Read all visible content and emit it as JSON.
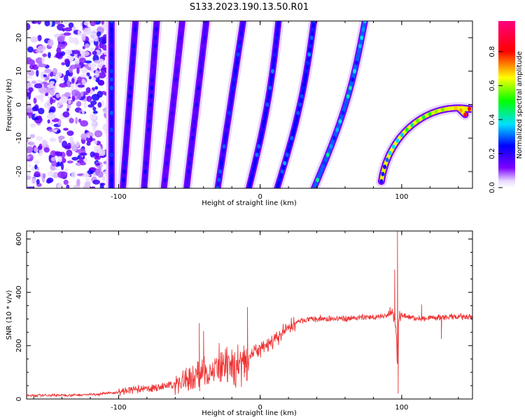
{
  "title": "S133.2023.190.13.50.R01",
  "chart_data": [
    {
      "type": "heatmap",
      "xlabel": "Height of straight line (km)",
      "ylabel": "Frequency (Hz)",
      "xlim": [
        -165,
        150
      ],
      "ylim": [
        -25,
        25
      ],
      "xticks": [
        -100,
        0,
        100
      ],
      "yticks": [
        -20,
        -10,
        0,
        10,
        20
      ],
      "colorbar": {
        "label": "Normalized spectral amplitude",
        "range": [
          0,
          0.98
        ],
        "ticks": [
          0.0,
          0.2,
          0.4,
          0.6,
          0.8
        ],
        "colormap": [
          "#ffffff",
          "#7b00ff",
          "#0000ff",
          "#00e0ff",
          "#00ff00",
          "#ffff00",
          "#ff0000",
          "#ff0080"
        ]
      },
      "ridges": [
        {
          "x_at_top": -105,
          "x_at_bottom": -105,
          "amplitude": 0.28
        },
        {
          "x_at_top": -88,
          "x_at_bottom": -97,
          "amplitude": 0.24
        },
        {
          "x_at_top": -73,
          "x_at_bottom": -82,
          "amplitude": 0.22
        },
        {
          "x_at_top": -55,
          "x_at_bottom": -68,
          "amplitude": 0.2
        },
        {
          "x_at_top": -38,
          "x_at_bottom": -52,
          "amplitude": 0.22
        },
        {
          "x_at_top": -12,
          "x_at_bottom": -30,
          "amplitude": 0.28
        },
        {
          "x_at_top": 13,
          "x_at_bottom": -8,
          "amplitude": 0.3
        },
        {
          "x_at_top": 38,
          "x_at_bottom": 12,
          "amplitude": 0.32
        },
        {
          "x_at_top": 74,
          "x_at_bottom": 38,
          "amplitude": 0.4
        },
        {
          "x_at_top": 152,
          "x_at_bottom": 88,
          "amplitude": 0.85
        }
      ]
    },
    {
      "type": "line",
      "xlabel": "Height of straight line (km)",
      "ylabel": "SNR (10 * v/v)",
      "xlim": [
        -165,
        150
      ],
      "ylim": [
        0,
        630
      ],
      "xticks": [
        -100,
        0,
        100
      ],
      "yticks": [
        0,
        200,
        400,
        600
      ],
      "color": "#ee3333",
      "series": [
        {
          "x": [
            -165,
            -150,
            -130,
            -115,
            -100,
            -90,
            -80,
            -70,
            -60,
            -50,
            -40,
            -30,
            -20,
            -15,
            -10,
            -5,
            0,
            5,
            10,
            15,
            20,
            25,
            30,
            40,
            50,
            60,
            70,
            80,
            85,
            90,
            93,
            95,
            96,
            97,
            98,
            100,
            105,
            110,
            120,
            130,
            140,
            150
          ],
          "y": [
            12,
            14,
            15,
            18,
            25,
            35,
            38,
            45,
            55,
            75,
            100,
            110,
            115,
            130,
            150,
            175,
            185,
            200,
            220,
            240,
            270,
            285,
            295,
            300,
            300,
            302,
            305,
            308,
            310,
            315,
            320,
            310,
            250,
            130,
            300,
            315,
            310,
            300,
            305,
            305,
            308,
            305
          ],
          "spikes": [
            {
              "x": -43,
              "y": 285
            },
            {
              "x": -40,
              "y": 255
            },
            {
              "x": -29,
              "y": 210
            },
            {
              "x": -27,
              "y": 175
            },
            {
              "x": -9,
              "y": 345
            },
            {
              "x": 95,
              "y": 485
            },
            {
              "x": 97,
              "y": 630
            },
            {
              "x": 97.5,
              "y": 20
            },
            {
              "x": 114,
              "y": 355
            },
            {
              "x": 128,
              "y": 225
            }
          ]
        }
      ]
    }
  ]
}
